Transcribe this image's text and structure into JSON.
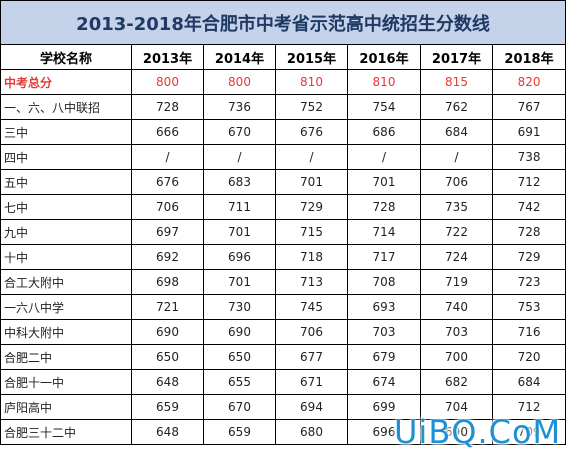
{
  "title": "2013-2018年合肥市中考省示范高中统招生分数线",
  "headers": [
    "学校名称",
    "2013年",
    "2014年",
    "2015年",
    "2016年",
    "2017年",
    "2018年"
  ],
  "total_row": {
    "name": "中考总分",
    "values": [
      "800",
      "800",
      "810",
      "810",
      "815",
      "820"
    ]
  },
  "rows": [
    {
      "name": "一、六、八中联招",
      "values": [
        "728",
        "736",
        "752",
        "754",
        "762",
        "767"
      ]
    },
    {
      "name": "三中",
      "values": [
        "666",
        "670",
        "676",
        "686",
        "684",
        "691"
      ]
    },
    {
      "name": "四中",
      "values": [
        "/",
        "/",
        "/",
        "/",
        "/",
        "738"
      ]
    },
    {
      "name": "五中",
      "values": [
        "676",
        "683",
        "701",
        "701",
        "706",
        "712"
      ]
    },
    {
      "name": "七中",
      "values": [
        "706",
        "711",
        "729",
        "728",
        "735",
        "742"
      ]
    },
    {
      "name": "九中",
      "values": [
        "697",
        "701",
        "715",
        "714",
        "722",
        "728"
      ]
    },
    {
      "name": "十中",
      "values": [
        "692",
        "696",
        "718",
        "717",
        "724",
        "729"
      ]
    },
    {
      "name": "合工大附中",
      "values": [
        "698",
        "701",
        "713",
        "708",
        "719",
        "723"
      ]
    },
    {
      "name": "一六八中学",
      "values": [
        "721",
        "730",
        "745",
        "693",
        "740",
        "753"
      ]
    },
    {
      "name": "中科大附中",
      "values": [
        "690",
        "690",
        "706",
        "703",
        "703",
        "716"
      ]
    },
    {
      "name": "合肥二中",
      "values": [
        "650",
        "650",
        "677",
        "679",
        "700",
        "720"
      ]
    },
    {
      "name": "合肥十一中",
      "values": [
        "648",
        "655",
        "671",
        "674",
        "682",
        "684"
      ]
    },
    {
      "name": "庐阳高中",
      "values": [
        "659",
        "670",
        "694",
        "699",
        "704",
        "712"
      ]
    },
    {
      "name": "合肥三十二中",
      "values": [
        "648",
        "659",
        "680",
        "696",
        "690",
        "709"
      ]
    }
  ],
  "watermark": "UiBQ.CoM"
}
